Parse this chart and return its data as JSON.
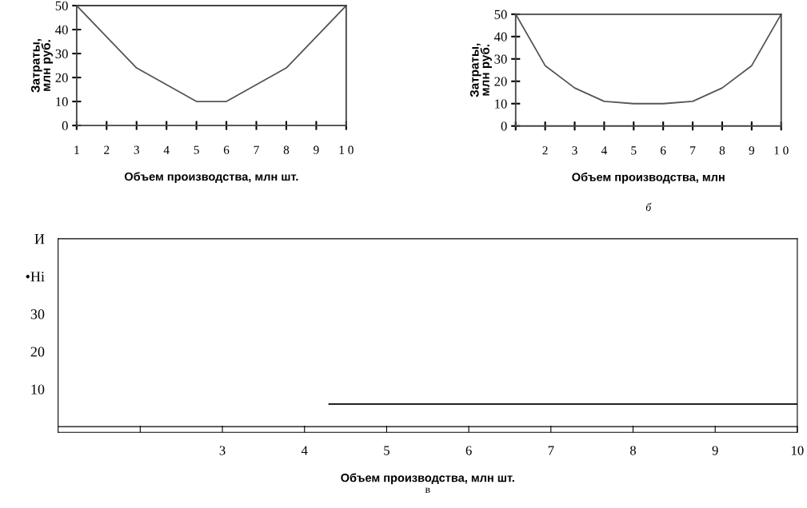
{
  "chart_data": [
    {
      "type": "line",
      "ylabel": "Затраты,\nмлн руб.",
      "x": [
        1,
        2,
        3,
        4,
        5,
        6,
        7,
        8,
        9,
        10
      ],
      "series": [
        {
          "color": "#555555",
          "values": [
            50,
            37,
            24,
            17,
            10,
            10,
            17,
            24,
            37,
            50
          ]
        }
      ],
      "xlim": [
        1,
        10
      ],
      "xticks": [
        1,
        2,
        3,
        4,
        5,
        6,
        7,
        8,
        9,
        {
          "value": 10,
          "label": "1 0"
        }
      ],
      "ylim": [
        0,
        50
      ],
      "yticks": [
        0,
        10,
        20,
        30,
        40,
        50
      ],
      "xlabel": "Объем производства, млн шт.",
      "grid": false,
      "legend": false
    },
    {
      "type": "line",
      "ylabel": "Затраты,\nмлн руб.",
      "x": [
        1,
        2,
        3,
        4,
        5,
        6,
        7,
        8,
        9,
        10
      ],
      "series": [
        {
          "color": "#555555",
          "values": [
            50,
            27,
            17,
            11,
            10,
            10,
            11,
            17,
            27,
            50
          ]
        }
      ],
      "xlim": [
        1,
        10
      ],
      "xticks": [
        {
          "value": 1,
          "label": null
        },
        2,
        3,
        4,
        5,
        6,
        7,
        8,
        9,
        {
          "value": 10,
          "label": "1 0"
        }
      ],
      "ylim": [
        0,
        50
      ],
      "yticks": [
        0,
        10,
        20,
        30,
        40,
        50
      ],
      "xlabel": "Объем производства, млн",
      "annotations": [
        "б"
      ],
      "grid": false,
      "legend": false
    },
    {
      "type": "line",
      "x": [
        4.3,
        10
      ],
      "series": [
        {
          "color": "#000000",
          "values": [
            6,
            6
          ]
        }
      ],
      "xlim": [
        1,
        10
      ],
      "xticks": [
        {
          "value": 2,
          "label": null
        },
        3,
        4,
        5,
        6,
        7,
        8,
        9,
        10
      ],
      "ylim": [
        -1.5,
        50
      ],
      "yticks": [
        10,
        20,
        30,
        {
          "value": 40,
          "label": "•Hi"
        },
        {
          "value": 50,
          "label": "И"
        }
      ],
      "ref_lines": [
        {
          "axis": "y",
          "value": 0,
          "color": "#000000"
        }
      ],
      "xlabel": "Объем производства, млн шт.",
      "annotations": [
        "в"
      ],
      "grid": false,
      "legend": false
    }
  ]
}
